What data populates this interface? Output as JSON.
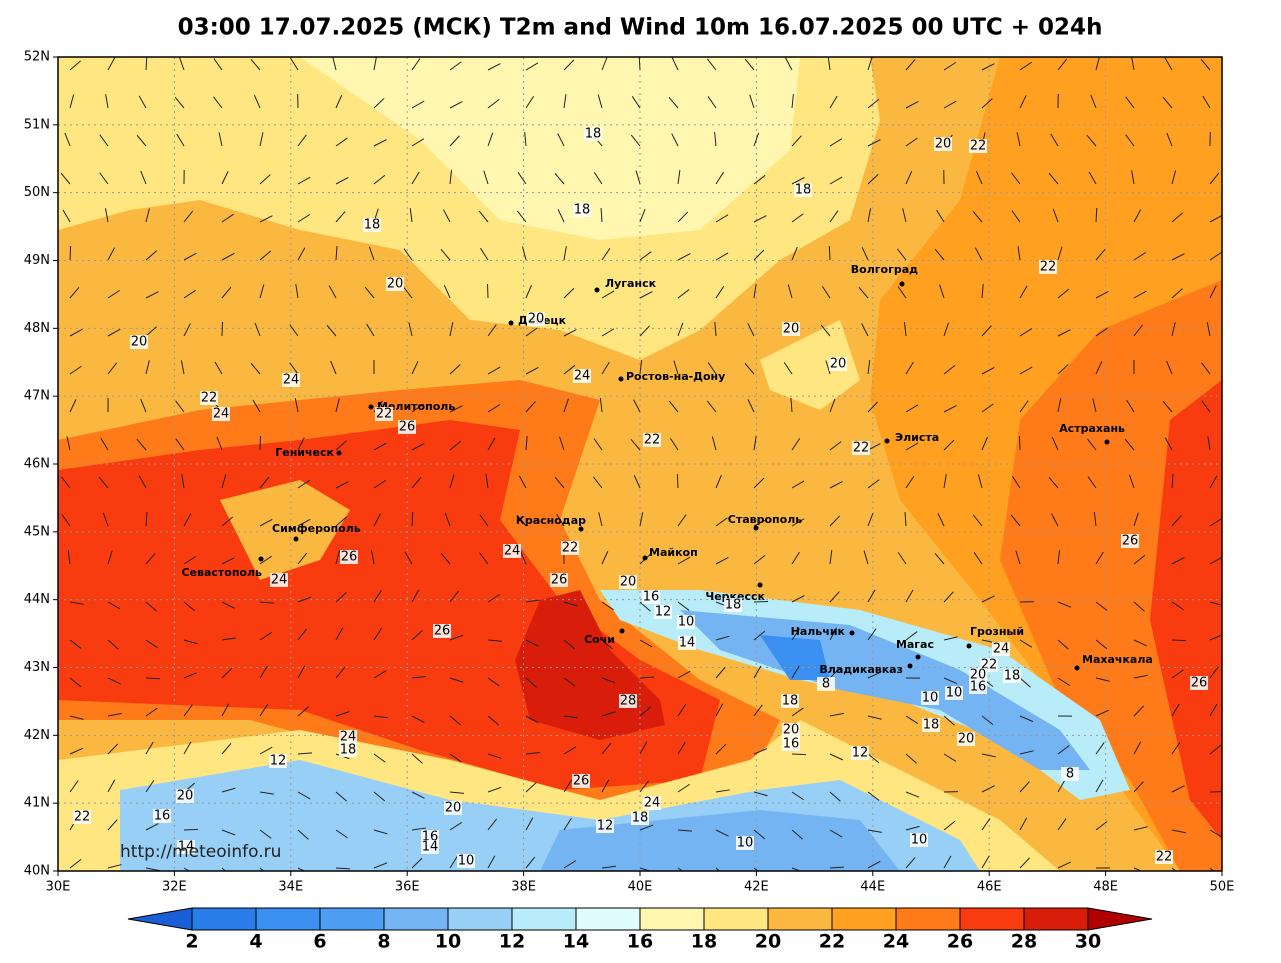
{
  "title": "03:00 17.07.2025 (МСК) T2m and Wind 10m 16.07.2025 00 UTC + 024h",
  "lat_labels": [
    "40N",
    "41N",
    "42N",
    "43N",
    "44N",
    "45N",
    "46N",
    "47N",
    "48N",
    "49N",
    "50N",
    "51N",
    "52N"
  ],
  "lon_labels": [
    "30E",
    "32E",
    "34E",
    "36E",
    "38E",
    "40E",
    "42E",
    "44E",
    "46E",
    "48E",
    "50E"
  ],
  "cities": [
    "Луганск",
    "Донецк",
    "Ростов-на-Дону",
    "Мелитополь",
    "Геническ",
    "Симферополь",
    "Севастополь",
    "Краснодар",
    "Майкоп",
    "Ставрополь",
    "Черкесск",
    "Сочи",
    "Нальчик",
    "Магас",
    "Грозный",
    "Владикавказ",
    "Махачкала",
    "Элиста",
    "Волгоград",
    "Астрахань"
  ],
  "contour_labels": [
    18,
    18,
    18,
    18,
    20,
    22,
    22,
    20,
    20,
    20,
    20,
    20,
    24,
    24,
    22,
    24,
    22,
    26,
    22,
    22,
    26,
    24,
    22,
    26,
    24,
    26,
    20,
    16,
    12,
    10,
    18,
    14,
    26,
    24,
    22,
    18,
    20,
    16,
    8,
    10,
    10,
    28,
    18,
    20,
    16,
    26,
    12,
    8,
    20,
    18,
    12,
    24,
    18,
    20,
    26,
    20,
    24,
    18,
    16,
    22,
    12,
    16,
    14,
    10,
    10,
    10,
    14,
    22
  ],
  "source": "http://meteoinfo.ru",
  "colorbar": {
    "ticks": [
      2,
      4,
      6,
      8,
      10,
      12,
      14,
      16,
      18,
      20,
      22,
      24,
      26,
      28,
      30
    ],
    "colors": [
      "#1a5fd8",
      "#2a7de8",
      "#3a8ff0",
      "#4d9df2",
      "#75b4f3",
      "#98cff6",
      "#b8ecf8",
      "#e0fcfc",
      "#fff7b0",
      "#ffe680",
      "#fbb840",
      "#ffa020",
      "#ff7a18",
      "#f83c10",
      "#d81e0a",
      "#b00000"
    ]
  }
}
